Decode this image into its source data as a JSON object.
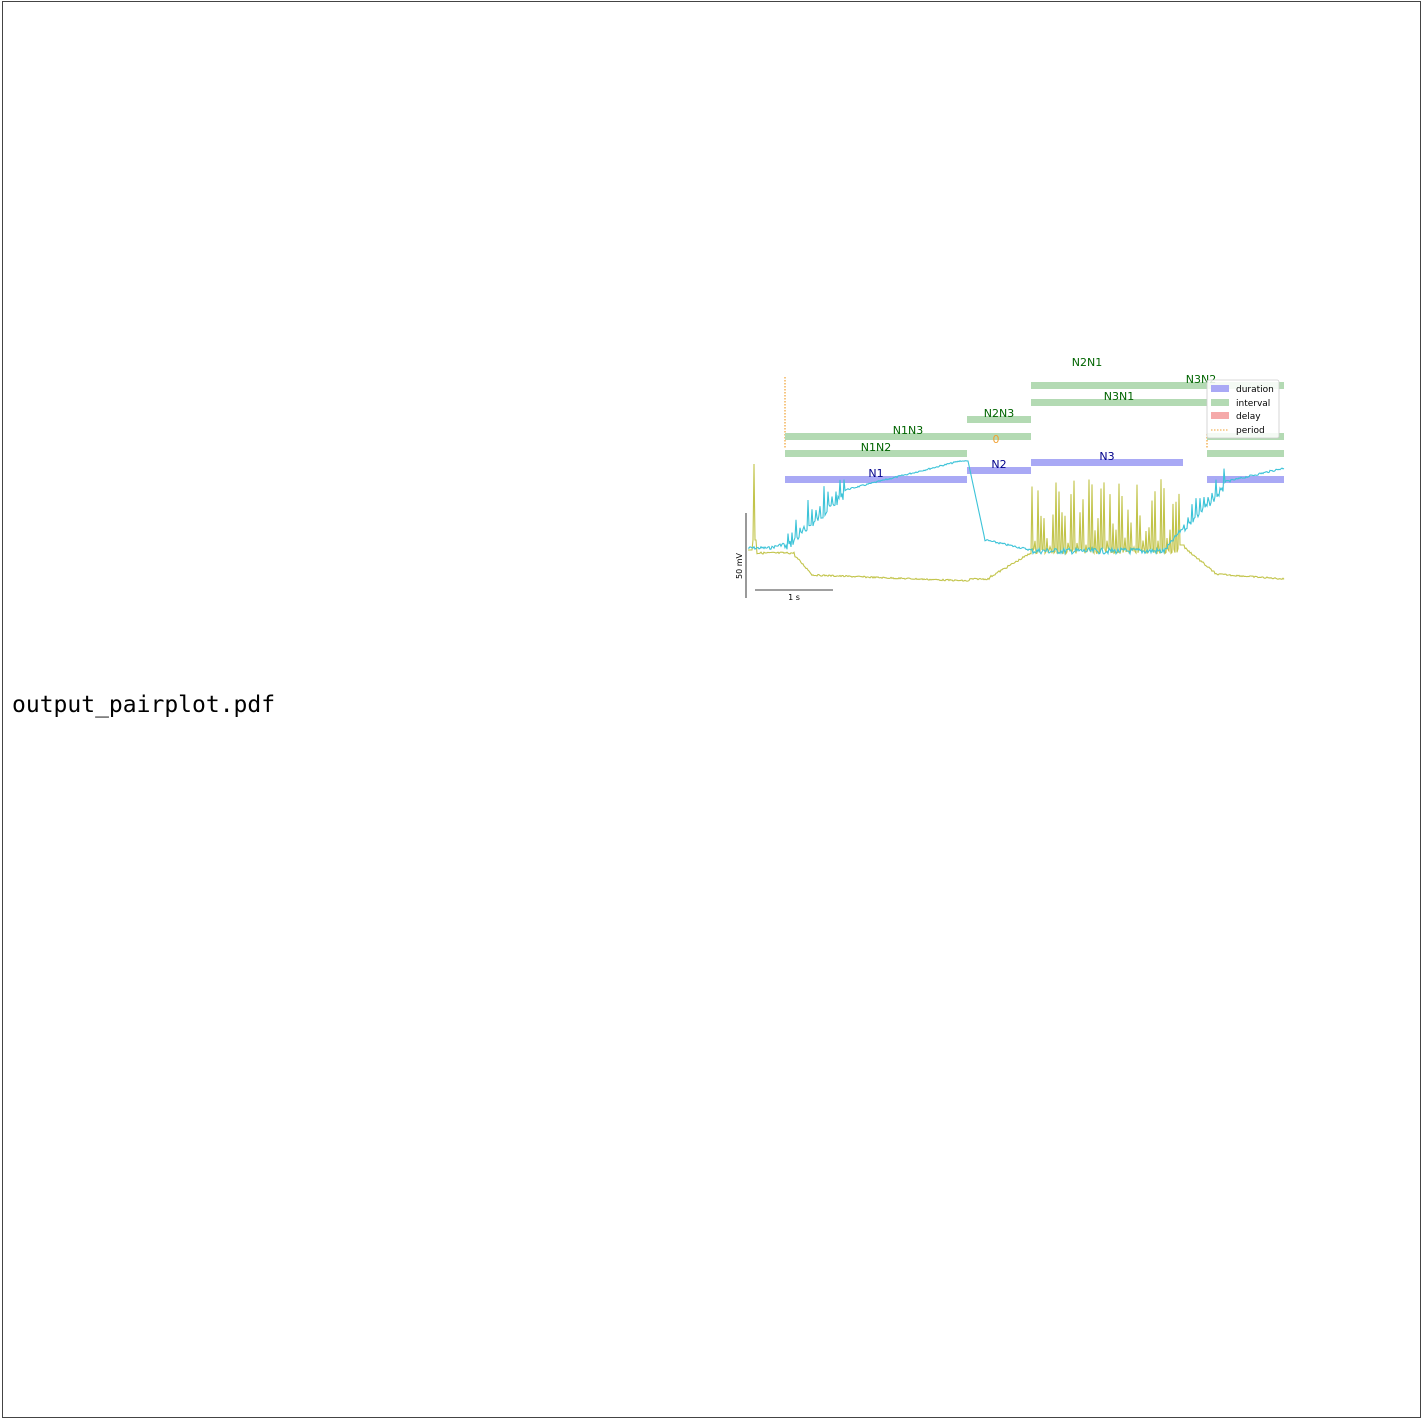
{
  "filename": "output_pairplot.pdf",
  "colors": {
    "duration": "#a9a9f5",
    "interval": "#b3dab3",
    "delay": "#f5a9a9",
    "period": "#f0a030",
    "trace_cyan": "#3cc3d8",
    "trace_olive": "#c2c44a",
    "label_blue": "#00008b",
    "label_green": "#006400",
    "label_orange": "#f0a030"
  },
  "bars": {
    "n1": "N1",
    "n2": "N2",
    "n3": "N3",
    "n1n2": "N1N2",
    "n1n3": "N1N3",
    "n2n3": "N2N3",
    "n2n1": "N2N1",
    "n3n1": "N3N1",
    "n3n2": "N3N2",
    "delay_mark": "0"
  },
  "legend": {
    "duration": "duration",
    "interval": "interval",
    "delay": "delay",
    "period": "period"
  },
  "scalebar": {
    "voltage": "50 mV",
    "time": "1 s"
  }
}
